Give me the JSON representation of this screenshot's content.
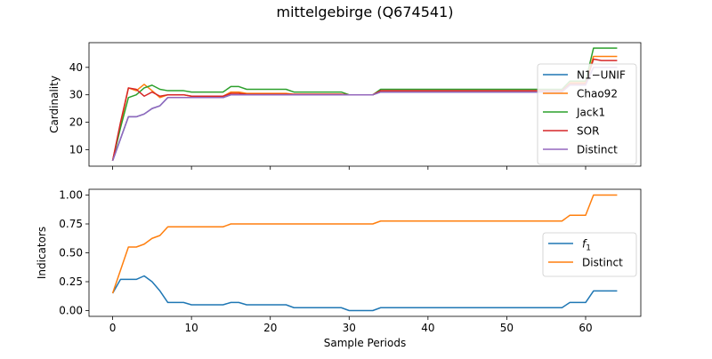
{
  "figure": {
    "title": "mittelgebirge (Q674541)"
  },
  "colors": {
    "blue": "#1f77b4",
    "orange": "#ff7f0e",
    "green": "#2ca02c",
    "red": "#d62728",
    "purple": "#9467bd"
  },
  "chart_data": [
    {
      "type": "line",
      "title": "",
      "xlabel": "",
      "ylabel": "Cardinality",
      "xlim": [
        -3,
        67
      ],
      "ylim": [
        4,
        49
      ],
      "xticks": [
        0,
        10,
        20,
        30,
        40,
        50,
        60
      ],
      "yticks": [
        10,
        20,
        30,
        40
      ],
      "show_xtick_labels": false,
      "grid": false,
      "legend": "right",
      "series": [
        {
          "name": "N1−UNIF",
          "color": "#1f77b4",
          "x": [
            0,
            1,
            2,
            3,
            4,
            5,
            6,
            7,
            8,
            9,
            10,
            11,
            12,
            13,
            14,
            15,
            16,
            17,
            18,
            19,
            20,
            21,
            22,
            23,
            24,
            25,
            26,
            27,
            28,
            29,
            30,
            31,
            32,
            33,
            34,
            35,
            36,
            37,
            38,
            39,
            40,
            41,
            42,
            43,
            44,
            45,
            46,
            47,
            48,
            49,
            50,
            51,
            52,
            53,
            54,
            55,
            56,
            57,
            58,
            59,
            60,
            61,
            62,
            63,
            64
          ],
          "y": [
            6,
            14,
            22,
            22,
            23,
            25,
            26,
            29,
            29,
            29,
            29,
            29,
            29,
            29,
            29,
            30,
            30,
            30,
            30,
            30,
            30,
            30,
            30,
            30,
            30,
            30,
            30,
            30,
            30,
            30,
            30,
            30,
            30,
            30,
            31,
            31,
            31,
            31,
            31,
            31,
            31,
            31,
            31,
            31,
            31,
            31,
            31,
            31,
            31,
            31,
            31,
            31,
            31,
            31,
            31,
            31,
            31,
            31,
            34,
            34,
            34,
            40,
            40,
            40,
            40
          ]
        },
        {
          "name": "Chao92",
          "color": "#ff7f0e",
          "x": [
            0,
            1,
            2,
            3,
            4,
            5,
            6,
            7,
            8,
            9,
            10,
            11,
            12,
            13,
            14,
            15,
            16,
            17,
            18,
            19,
            20,
            21,
            22,
            23,
            24,
            25,
            26,
            27,
            28,
            29,
            30,
            31,
            32,
            33,
            34,
            35,
            36,
            37,
            38,
            39,
            40,
            41,
            42,
            43,
            44,
            45,
            46,
            47,
            48,
            49,
            50,
            51,
            52,
            53,
            54,
            55,
            56,
            57,
            58,
            59,
            60,
            61,
            62,
            63,
            64
          ],
          "y": [
            6,
            19,
            32.5,
            31.5,
            33.8,
            31.5,
            29,
            30,
            30,
            30,
            29.5,
            29.5,
            29.5,
            29.5,
            29.5,
            31,
            31,
            30.5,
            30.5,
            30.5,
            30.5,
            30.5,
            30.5,
            30.2,
            30.2,
            30.2,
            30.2,
            30.2,
            30.2,
            30.2,
            30,
            30,
            30,
            30,
            31.3,
            31.3,
            31.3,
            31.3,
            31.3,
            31.3,
            31.3,
            31.3,
            31.3,
            31.3,
            31.3,
            31.3,
            31.3,
            31.3,
            31.3,
            31.3,
            31.3,
            31.3,
            31.3,
            31.3,
            31.3,
            31.3,
            31.3,
            31.3,
            34.5,
            34.5,
            34.5,
            44,
            44,
            44,
            44
          ]
        },
        {
          "name": "Jack1",
          "color": "#2ca02c",
          "x": [
            0,
            1,
            2,
            3,
            4,
            5,
            6,
            7,
            8,
            9,
            10,
            11,
            12,
            13,
            14,
            15,
            16,
            17,
            18,
            19,
            20,
            21,
            22,
            23,
            24,
            25,
            26,
            27,
            28,
            29,
            30,
            31,
            32,
            33,
            34,
            35,
            36,
            37,
            38,
            39,
            40,
            41,
            42,
            43,
            44,
            45,
            46,
            47,
            48,
            49,
            50,
            51,
            52,
            53,
            54,
            55,
            56,
            57,
            58,
            59,
            60,
            61,
            62,
            63,
            64
          ],
          "y": [
            6,
            18,
            29,
            30,
            32.5,
            33.5,
            32,
            31.5,
            31.5,
            31.5,
            31,
            31,
            31,
            31,
            31,
            33,
            33,
            32,
            32,
            32,
            32,
            32,
            32,
            31,
            31,
            31,
            31,
            31,
            31,
            31,
            30,
            30,
            30,
            30,
            32,
            32,
            32,
            32,
            32,
            32,
            32,
            32,
            32,
            32,
            32,
            32,
            32,
            32,
            32,
            32,
            32,
            32,
            32,
            32,
            32,
            32,
            32,
            32,
            35,
            35,
            35,
            47,
            47,
            47,
            47
          ]
        },
        {
          "name": "SOR",
          "color": "#d62728",
          "x": [
            0,
            1,
            2,
            3,
            4,
            5,
            6,
            7,
            8,
            9,
            10,
            11,
            12,
            13,
            14,
            15,
            16,
            17,
            18,
            19,
            20,
            21,
            22,
            23,
            24,
            25,
            26,
            27,
            28,
            29,
            30,
            31,
            32,
            33,
            34,
            35,
            36,
            37,
            38,
            39,
            40,
            41,
            42,
            43,
            44,
            45,
            46,
            47,
            48,
            49,
            50,
            51,
            52,
            53,
            54,
            55,
            56,
            57,
            58,
            59,
            60,
            61,
            62,
            63,
            64
          ],
          "y": [
            6,
            20,
            32.5,
            32,
            29.5,
            31,
            29.5,
            30,
            30,
            30,
            29.5,
            29.5,
            29.5,
            29.5,
            29.5,
            30.5,
            30.5,
            30.2,
            30.2,
            30.2,
            30.2,
            30.2,
            30.2,
            30.2,
            30.2,
            30.2,
            30.2,
            30.2,
            30.2,
            30.2,
            30,
            30,
            30,
            30,
            31.5,
            31.5,
            31.5,
            31.5,
            31.5,
            31.5,
            31.5,
            31.5,
            31.5,
            31.5,
            31.5,
            31.5,
            31.5,
            31.5,
            31.5,
            31.5,
            31.5,
            31.5,
            31.5,
            31.5,
            31.5,
            31.5,
            31.5,
            31.5,
            34,
            34,
            34,
            43,
            42.5,
            42.5,
            42.5
          ]
        },
        {
          "name": "Distinct",
          "color": "#9467bd",
          "x": [
            0,
            1,
            2,
            3,
            4,
            5,
            6,
            7,
            8,
            9,
            10,
            11,
            12,
            13,
            14,
            15,
            16,
            17,
            18,
            19,
            20,
            21,
            22,
            23,
            24,
            25,
            26,
            27,
            28,
            29,
            30,
            31,
            32,
            33,
            34,
            35,
            36,
            37,
            38,
            39,
            40,
            41,
            42,
            43,
            44,
            45,
            46,
            47,
            48,
            49,
            50,
            51,
            52,
            53,
            54,
            55,
            56,
            57,
            58,
            59,
            60,
            61,
            62,
            63,
            64
          ],
          "y": [
            6,
            14,
            22,
            22,
            23,
            25,
            26,
            29,
            29,
            29,
            29,
            29,
            29,
            29,
            29,
            30,
            30,
            30,
            30,
            30,
            30,
            30,
            30,
            30,
            30,
            30,
            30,
            30,
            30,
            30,
            30,
            30,
            30,
            30,
            31,
            31,
            31,
            31,
            31,
            31,
            31,
            31,
            31,
            31,
            31,
            31,
            31,
            31,
            31,
            31,
            31,
            31,
            31,
            31,
            31,
            31,
            31,
            31,
            33.5,
            33.5,
            33.5,
            40,
            40,
            40,
            40
          ]
        }
      ]
    },
    {
      "type": "line",
      "title": "",
      "xlabel": "Sample Periods",
      "ylabel": "Indicators",
      "xlim": [
        -3,
        67
      ],
      "ylim": [
        -0.05,
        1.05
      ],
      "xticks": [
        0,
        10,
        20,
        30,
        40,
        50,
        60
      ],
      "yticks": [
        0.0,
        0.25,
        0.5,
        0.75,
        1.0
      ],
      "ytick_labels": [
        "0.00",
        "0.25",
        "0.50",
        "0.75",
        "1.00"
      ],
      "grid": false,
      "legend": "right",
      "series": [
        {
          "name": "f1",
          "color": "#1f77b4",
          "x": [
            0,
            1,
            2,
            3,
            4,
            5,
            6,
            7,
            8,
            9,
            10,
            11,
            12,
            13,
            14,
            15,
            16,
            17,
            18,
            19,
            20,
            21,
            22,
            23,
            24,
            25,
            26,
            27,
            28,
            29,
            30,
            31,
            32,
            33,
            34,
            35,
            36,
            37,
            38,
            39,
            40,
            41,
            42,
            43,
            44,
            45,
            46,
            47,
            48,
            49,
            50,
            51,
            52,
            53,
            54,
            55,
            56,
            57,
            58,
            59,
            60,
            61,
            62,
            63,
            64
          ],
          "y": [
            0.15,
            0.27,
            0.27,
            0.27,
            0.3,
            0.25,
            0.17,
            0.07,
            0.07,
            0.07,
            0.05,
            0.05,
            0.05,
            0.05,
            0.05,
            0.07,
            0.07,
            0.05,
            0.05,
            0.05,
            0.05,
            0.05,
            0.05,
            0.025,
            0.025,
            0.025,
            0.025,
            0.025,
            0.025,
            0.025,
            0,
            0,
            0,
            0,
            0.025,
            0.025,
            0.025,
            0.025,
            0.025,
            0.025,
            0.025,
            0.025,
            0.025,
            0.025,
            0.025,
            0.025,
            0.025,
            0.025,
            0.025,
            0.025,
            0.025,
            0.025,
            0.025,
            0.025,
            0.025,
            0.025,
            0.025,
            0.025,
            0.07,
            0.07,
            0.07,
            0.17,
            0.17,
            0.17,
            0.17
          ]
        },
        {
          "name": "Distinct",
          "color": "#ff7f0e",
          "x": [
            0,
            1,
            2,
            3,
            4,
            5,
            6,
            7,
            8,
            9,
            10,
            11,
            12,
            13,
            14,
            15,
            16,
            17,
            18,
            19,
            20,
            21,
            22,
            23,
            24,
            25,
            26,
            27,
            28,
            29,
            30,
            31,
            32,
            33,
            34,
            35,
            36,
            37,
            38,
            39,
            40,
            41,
            42,
            43,
            44,
            45,
            46,
            47,
            48,
            49,
            50,
            51,
            52,
            53,
            54,
            55,
            56,
            57,
            58,
            59,
            60,
            61,
            62,
            63,
            64
          ],
          "y": [
            0.15,
            0.35,
            0.55,
            0.55,
            0.575,
            0.625,
            0.65,
            0.725,
            0.725,
            0.725,
            0.725,
            0.725,
            0.725,
            0.725,
            0.725,
            0.75,
            0.75,
            0.75,
            0.75,
            0.75,
            0.75,
            0.75,
            0.75,
            0.75,
            0.75,
            0.75,
            0.75,
            0.75,
            0.75,
            0.75,
            0.75,
            0.75,
            0.75,
            0.75,
            0.775,
            0.775,
            0.775,
            0.775,
            0.775,
            0.775,
            0.775,
            0.775,
            0.775,
            0.775,
            0.775,
            0.775,
            0.775,
            0.775,
            0.775,
            0.775,
            0.775,
            0.775,
            0.775,
            0.775,
            0.775,
            0.775,
            0.775,
            0.775,
            0.825,
            0.825,
            0.825,
            1,
            1,
            1,
            1
          ]
        }
      ]
    }
  ]
}
